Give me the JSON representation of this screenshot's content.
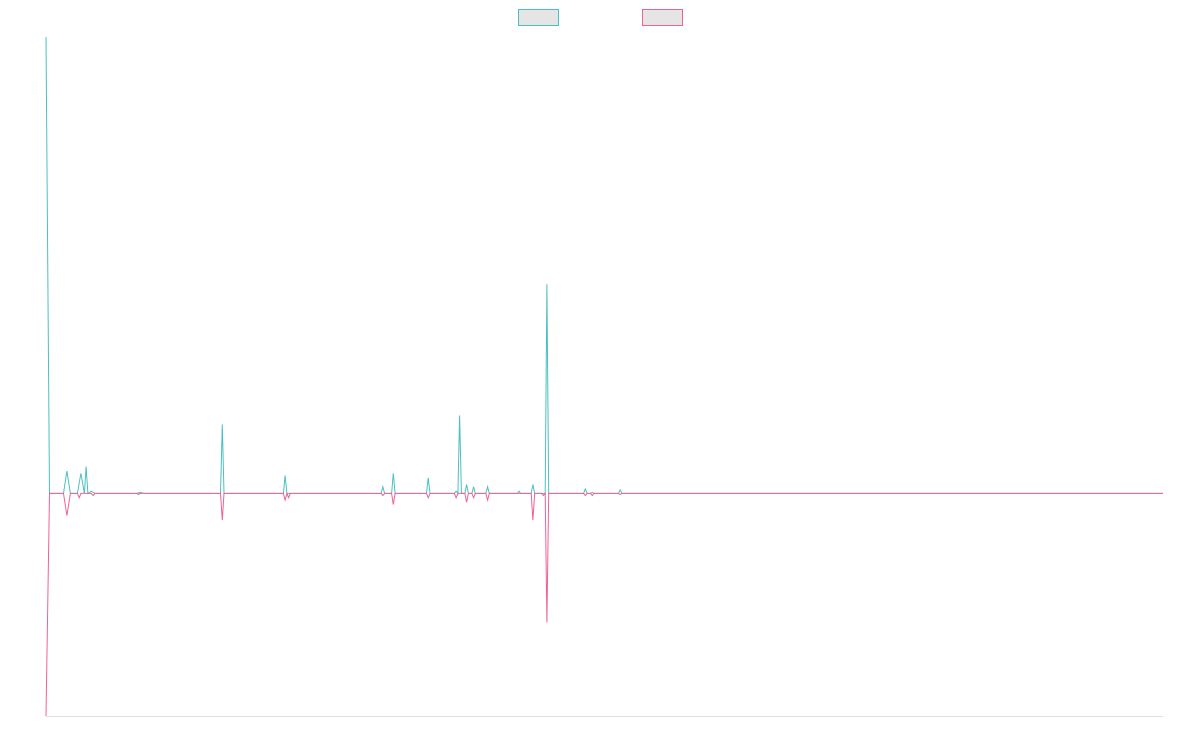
{
  "chart_data": {
    "type": "line",
    "title": "",
    "xlabel": "",
    "ylabel": "",
    "grid": false,
    "legend_position": "top-center",
    "xlim": [
      0,
      320
    ],
    "ylim": [
      -100,
      205
    ],
    "series": [
      {
        "name": "",
        "color": "#4bc0c0",
        "legend_fill": "#e5e5e5",
        "points": [
          [
            0,
            205
          ],
          [
            1,
            0
          ],
          [
            5,
            0
          ],
          [
            6,
            10
          ],
          [
            7,
            0
          ],
          [
            9,
            0
          ],
          [
            10,
            9
          ],
          [
            11,
            0
          ],
          [
            11.5,
            12
          ],
          [
            12,
            0
          ],
          [
            13,
            1
          ],
          [
            14,
            0
          ],
          [
            26,
            0
          ],
          [
            27,
            0.5
          ],
          [
            28,
            0
          ],
          [
            50,
            0
          ],
          [
            50.5,
            31
          ],
          [
            51,
            0
          ],
          [
            68,
            0
          ],
          [
            68.5,
            8
          ],
          [
            69,
            0
          ],
          [
            96,
            0
          ],
          [
            96.5,
            3
          ],
          [
            97,
            0
          ],
          [
            99,
            0
          ],
          [
            99.5,
            9
          ],
          [
            100,
            0
          ],
          [
            109,
            0
          ],
          [
            109.5,
            7
          ],
          [
            110,
            0
          ],
          [
            117,
            0
          ],
          [
            117.5,
            1
          ],
          [
            118,
            0
          ],
          [
            118.5,
            35
          ],
          [
            119,
            0
          ],
          [
            120,
            0
          ],
          [
            120.5,
            4
          ],
          [
            121,
            0
          ],
          [
            122,
            0
          ],
          [
            122.5,
            3
          ],
          [
            123,
            0
          ],
          [
            126,
            0
          ],
          [
            126.5,
            3
          ],
          [
            127,
            0
          ],
          [
            135,
            0
          ],
          [
            135.5,
            1
          ],
          [
            136,
            0
          ],
          [
            139,
            0
          ],
          [
            139.5,
            4
          ],
          [
            140,
            0
          ],
          [
            143,
            0
          ],
          [
            143.5,
            94
          ],
          [
            144,
            0
          ],
          [
            154,
            0
          ],
          [
            154.5,
            2
          ],
          [
            155,
            0
          ],
          [
            156,
            0
          ],
          [
            156.5,
            0.5
          ],
          [
            157,
            0
          ],
          [
            164,
            0
          ],
          [
            164.5,
            1.5
          ],
          [
            165,
            0
          ],
          [
            320,
            0
          ]
        ]
      },
      {
        "name": "",
        "color": "#f06292",
        "legend_fill": "#e5e5e5",
        "points": [
          [
            0,
            -100
          ],
          [
            1,
            0
          ],
          [
            5,
            0
          ],
          [
            6,
            -10
          ],
          [
            7,
            0
          ],
          [
            9,
            0
          ],
          [
            9.5,
            -2
          ],
          [
            10,
            0
          ],
          [
            13,
            0
          ],
          [
            13.5,
            -1
          ],
          [
            14,
            0
          ],
          [
            26,
            0
          ],
          [
            26.5,
            -0.5
          ],
          [
            27,
            0
          ],
          [
            50,
            0
          ],
          [
            50.5,
            -12
          ],
          [
            51,
            0
          ],
          [
            68,
            0
          ],
          [
            68.5,
            -3
          ],
          [
            69,
            0
          ],
          [
            69.5,
            -2
          ],
          [
            70,
            0
          ],
          [
            96,
            0
          ],
          [
            96.5,
            -1
          ],
          [
            97,
            0
          ],
          [
            99,
            0
          ],
          [
            99.5,
            -5
          ],
          [
            100,
            0
          ],
          [
            109,
            0
          ],
          [
            109.5,
            -2
          ],
          [
            110,
            0
          ],
          [
            117,
            0
          ],
          [
            117.5,
            -2
          ],
          [
            118,
            0
          ],
          [
            120,
            0
          ],
          [
            120.5,
            -4
          ],
          [
            121,
            0
          ],
          [
            122,
            0
          ],
          [
            122.5,
            -2
          ],
          [
            123,
            0
          ],
          [
            126,
            0
          ],
          [
            126.5,
            -3
          ],
          [
            127,
            0
          ],
          [
            139,
            0
          ],
          [
            139.5,
            -12
          ],
          [
            140,
            0
          ],
          [
            142,
            0
          ],
          [
            142.5,
            -1
          ],
          [
            143,
            0
          ],
          [
            143.5,
            -58
          ],
          [
            144,
            0
          ],
          [
            154,
            0
          ],
          [
            154.5,
            -1
          ],
          [
            155,
            0
          ],
          [
            156,
            0
          ],
          [
            156.5,
            -1
          ],
          [
            157,
            0
          ],
          [
            164,
            0
          ],
          [
            164.5,
            -0.5
          ],
          [
            165,
            0
          ],
          [
            320,
            0
          ]
        ]
      }
    ]
  }
}
